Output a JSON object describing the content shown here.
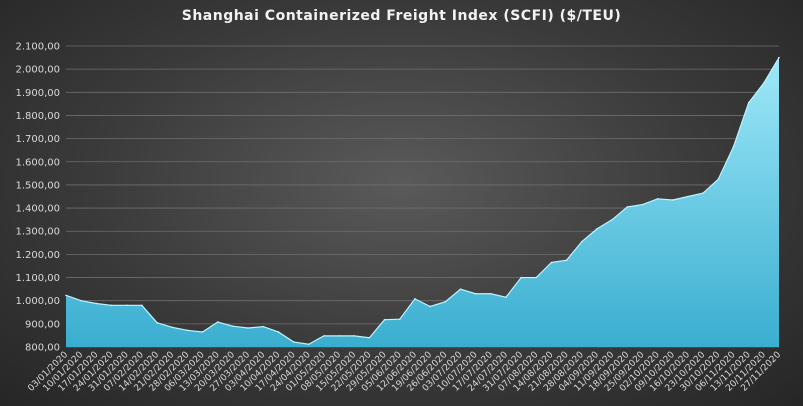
{
  "chart_data": {
    "type": "area",
    "title": "Shanghai Containerized Freight Index  (SCFI)  ($/TEU)",
    "xlabel": "",
    "ylabel": "",
    "ylim": [
      800,
      2100
    ],
    "ytick_step": 100,
    "grid": "horizontal",
    "legend": "none",
    "colors": {
      "area_top": "#9ee8f8",
      "area_bottom": "#3aaed0",
      "line": "#bff3ff"
    },
    "x": [
      "03/01/2020",
      "10/01/2020",
      "17/01/2020",
      "24/01/2020",
      "31/01/2020",
      "07/02/2020",
      "14/02/2020",
      "21/02/2020",
      "28/02/2020",
      "06/03/2020",
      "13/03/2020",
      "20/03/2020",
      "27/03/2020",
      "03/04/2020",
      "10/04/2020",
      "17/04/2020",
      "24/04/2020",
      "01/05/2020",
      "08/05/2020",
      "15/05/2020",
      "22/05/2020",
      "29/05/2020",
      "05/06/2020",
      "12/06/2020",
      "19/06/2020",
      "26/06/2020",
      "03/07/2020",
      "10/07/2020",
      "17/07/2020",
      "24/07/2020",
      "31/07/2020",
      "07/08/2020",
      "14/08/2020",
      "21/08/2020",
      "28/08/2020",
      "04/09/2020",
      "11/09/2020",
      "18/09/2020",
      "25/09/2020",
      "02/10/2020",
      "09/10/2020",
      "16/10/2020",
      "23/10/2020",
      "30/10/2020",
      "06/11/2020",
      "13/11/2020",
      "20/11/2020",
      "27/11/2020"
    ],
    "y": [
      1023,
      1000,
      988,
      980,
      980,
      980,
      905,
      885,
      872,
      865,
      908,
      890,
      882,
      888,
      865,
      822,
      812,
      848,
      848,
      848,
      840,
      918,
      920,
      1008,
      975,
      995,
      1050,
      1030,
      1030,
      1015,
      1100,
      1100,
      1165,
      1175,
      1255,
      1310,
      1350,
      1405,
      1415,
      1440,
      1435,
      1450,
      1465,
      1525,
      1665,
      1855,
      1940,
      2050
    ]
  }
}
